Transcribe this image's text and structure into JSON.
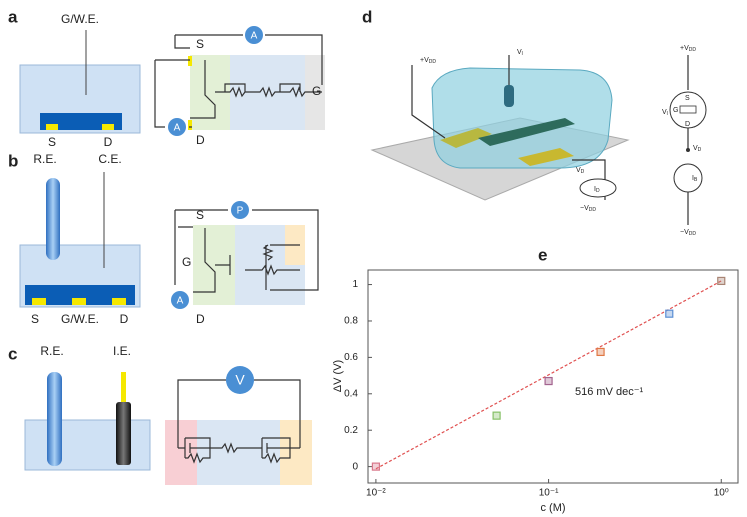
{
  "panels": {
    "a": {
      "label": "a",
      "electrode": "G/W.E.",
      "source": "S",
      "drain": "D",
      "circuit": {
        "source": "S",
        "drain": "D",
        "gate": "G",
        "meter_top": "A",
        "meter_bottom": "A"
      }
    },
    "b": {
      "label": "b",
      "reference": "R.E.",
      "counter": "C.E.",
      "source": "S",
      "gate": "G/W.E.",
      "drain": "D",
      "circuit": {
        "source": "S",
        "gate": "G",
        "drain": "D",
        "meter_top": "P",
        "meter_bottom": "A"
      }
    },
    "c": {
      "label": "c",
      "reference": "R.E.",
      "indicator": "I.E.",
      "circuit": {
        "meter": "V"
      }
    },
    "d": {
      "label": "d",
      "left": {
        "vdd_plus": {
          "main": "+V",
          "sub": "DD"
        },
        "vl": {
          "main": "V",
          "sub": "l"
        },
        "vd": {
          "main": "V",
          "sub": "D"
        },
        "id": {
          "main": "I",
          "sub": "D"
        },
        "vdd_minus": {
          "main": "−V",
          "sub": "DD"
        }
      },
      "right": {
        "vdd_plus": {
          "main": "+V",
          "sub": "DD"
        },
        "source": "S",
        "gate": "G",
        "vl": {
          "main": "V",
          "sub": "l"
        },
        "drain": "D",
        "vd": {
          "main": "V",
          "sub": "D"
        },
        "ib": {
          "main": "I",
          "sub": "B"
        },
        "vdd_minus": {
          "main": "−V",
          "sub": "DD"
        }
      }
    },
    "e": {
      "label": "e"
    }
  },
  "chart_data": {
    "type": "scatter",
    "x_label": "c (M)",
    "y_label": "ΔV (V)",
    "annotation": "516 mV dec⁻¹",
    "x": [
      0.01,
      0.05,
      0.1,
      0.2,
      0.5,
      1
    ],
    "values": [
      0,
      0.28,
      0.47,
      0.63,
      0.84,
      1.02
    ],
    "colors": [
      "#d9788c",
      "#86c067",
      "#a3648f",
      "#e07845",
      "#5b8fd4",
      "#a88474"
    ],
    "fit": {
      "x": [
        0.01,
        1
      ],
      "values": [
        -0.012,
        1.02
      ],
      "color": "#e05050"
    },
    "log_x": true,
    "xlim": [
      0.009,
      1.25
    ],
    "ylim": [
      -0.09,
      1.08
    ],
    "xticks": [
      {
        "value": 0.01,
        "label": "10⁻²"
      },
      {
        "value": 0.1,
        "label": "10⁻¹"
      },
      {
        "value": 1,
        "label": "10⁰"
      }
    ],
    "yticks": [
      0,
      0.2,
      0.4,
      0.6,
      0.8,
      1
    ]
  }
}
